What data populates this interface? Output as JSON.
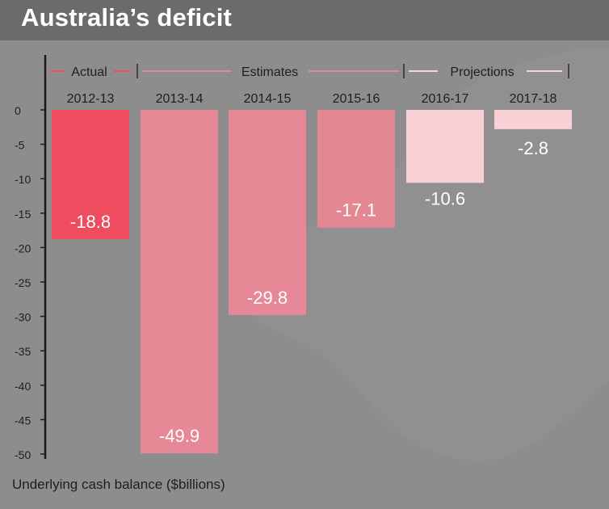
{
  "title": "Australia’s deficit",
  "chart_data": {
    "type": "bar",
    "title": "Australia’s deficit",
    "xlabel": "",
    "ylabel": "Underlying cash balance ($billions)",
    "categories": [
      "2012-13",
      "2013-14",
      "2014-15",
      "2015-16",
      "2016-17",
      "2017-18"
    ],
    "values": [
      -18.8,
      -49.9,
      -29.8,
      -17.1,
      -10.6,
      -2.8
    ],
    "data_labels": [
      "-18.8",
      "-49.9",
      "-29.8",
      "-17.1",
      "-10.6",
      "-2.8"
    ],
    "ylim": [
      -50,
      0
    ],
    "yticks": [
      0,
      -5,
      -10,
      -15,
      -20,
      -25,
      -30,
      -35,
      -40,
      -45,
      -50
    ],
    "grid": false,
    "groups": [
      {
        "label": "Actual",
        "categories": [
          "2012-13"
        ],
        "color": "#f04c60"
      },
      {
        "label": "Estimates",
        "categories": [
          "2013-14",
          "2014-15",
          "2015-16"
        ],
        "color": "#e78896"
      },
      {
        "label": "Projections",
        "categories": [
          "2016-17",
          "2017-18"
        ],
        "color": "#f9d0d6"
      }
    ],
    "bar_colors": [
      "#f04c60",
      "#e78896",
      "#e78896",
      "#e38792",
      "#f9d0d6",
      "#f9d0d6"
    ]
  }
}
